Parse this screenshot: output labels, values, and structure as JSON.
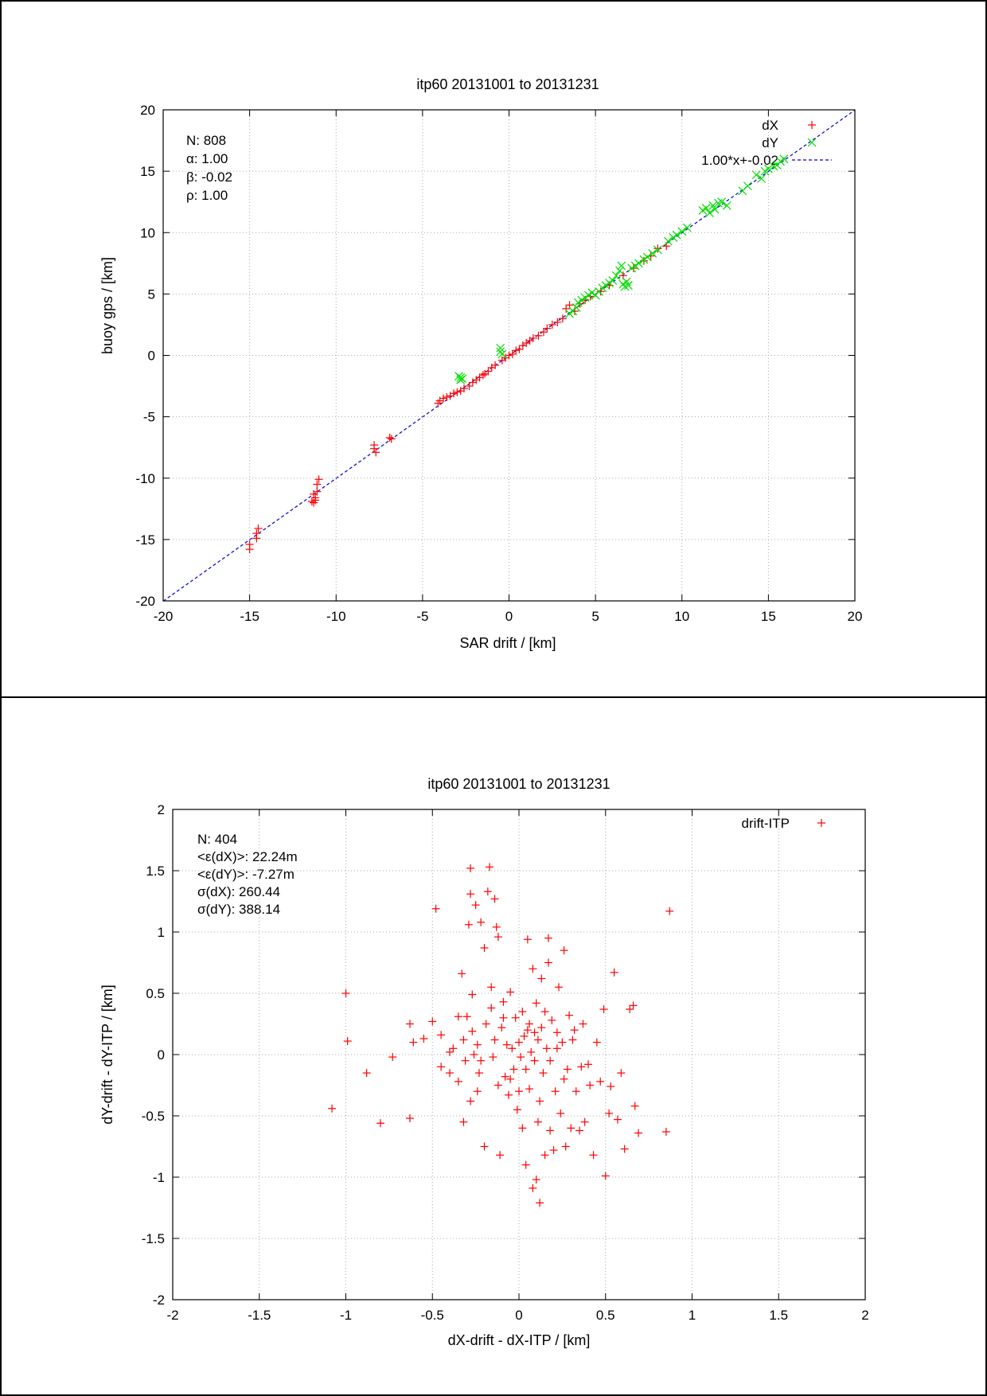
{
  "colors": {
    "dX": "#ff0000",
    "dY": "#00dd00",
    "fit": "#0000cc",
    "grid": "#aaaaaa",
    "axis": "#000000"
  },
  "chart_data": [
    {
      "type": "scatter",
      "title": "itp60 20131001 to 20131231",
      "xlabel": "SAR drift / [km]",
      "ylabel": "buoy gps / [km]",
      "xlim": [
        -20,
        20
      ],
      "ylim": [
        -20,
        20
      ],
      "xticks": [
        -20,
        -15,
        -10,
        -5,
        0,
        5,
        10,
        15,
        20
      ],
      "yticks": [
        -20,
        -15,
        -10,
        -5,
        0,
        5,
        10,
        15,
        20
      ],
      "grid": true,
      "legend_position": "top-right",
      "stats": [
        "N: 808",
        "α: 1.00",
        "β: -0.02",
        "ρ: 1.00"
      ],
      "series": [
        {
          "name": "dX",
          "marker": "plus",
          "color": "#ff0000",
          "points": [
            [
              -15.0,
              -15.4
            ],
            [
              -15.0,
              -15.8
            ],
            [
              -14.6,
              -14.5
            ],
            [
              -14.5,
              -14.1
            ],
            [
              -14.6,
              -14.9
            ],
            [
              -11.3,
              -11.3
            ],
            [
              -11.2,
              -11.6
            ],
            [
              -11.4,
              -11.9
            ],
            [
              -11.1,
              -11.1
            ],
            [
              -11.1,
              -10.5
            ],
            [
              -11.0,
              -10.1
            ],
            [
              -11.3,
              -12.0
            ],
            [
              -11.2,
              -11.8
            ],
            [
              -7.8,
              -7.3
            ],
            [
              -7.8,
              -7.6
            ],
            [
              -7.7,
              -7.9
            ],
            [
              -6.8,
              -6.8
            ],
            [
              -6.9,
              -6.7
            ],
            [
              -4.1,
              -3.9
            ],
            [
              -4.0,
              -3.7
            ],
            [
              -3.8,
              -3.5
            ],
            [
              -3.6,
              -3.4
            ],
            [
              -3.4,
              -3.3
            ],
            [
              -3.2,
              -3.1
            ],
            [
              -3.0,
              -3.0
            ],
            [
              -2.8,
              -2.9
            ],
            [
              -2.6,
              -2.7
            ],
            [
              -2.3,
              -2.5
            ],
            [
              -2.1,
              -2.2
            ],
            [
              -1.9,
              -2.0
            ],
            [
              -1.7,
              -1.8
            ],
            [
              -1.5,
              -1.6
            ],
            [
              -1.4,
              -1.5
            ],
            [
              -1.2,
              -1.3
            ],
            [
              -1.0,
              -1.0
            ],
            [
              -0.8,
              -0.8
            ],
            [
              -0.4,
              -0.4
            ],
            [
              -0.2,
              -0.2
            ],
            [
              0.0,
              0.0
            ],
            [
              0.2,
              0.1
            ],
            [
              0.4,
              0.4
            ],
            [
              0.6,
              0.5
            ],
            [
              0.8,
              0.8
            ],
            [
              1.0,
              1.0
            ],
            [
              1.2,
              1.2
            ],
            [
              1.4,
              1.4
            ],
            [
              1.7,
              1.6
            ],
            [
              2.0,
              1.9
            ],
            [
              2.2,
              2.2
            ],
            [
              2.5,
              2.5
            ],
            [
              2.8,
              2.7
            ],
            [
              3.1,
              3.0
            ],
            [
              3.3,
              3.8
            ],
            [
              3.5,
              4.1
            ],
            [
              3.8,
              3.6
            ],
            [
              4.1,
              4.2
            ],
            [
              4.4,
              4.5
            ],
            [
              4.7,
              4.8
            ],
            [
              5.3,
              5.2
            ],
            [
              5.8,
              5.7
            ],
            [
              6.6,
              6.5
            ],
            [
              7.2,
              7.1
            ],
            [
              7.8,
              7.7
            ],
            [
              8.2,
              8.1
            ],
            [
              8.6,
              8.7
            ],
            [
              9.1,
              8.9
            ]
          ]
        },
        {
          "name": "dY",
          "marker": "cross",
          "color": "#00dd00",
          "points": [
            [
              -2.9,
              -1.7
            ],
            [
              -2.8,
              -2.0
            ],
            [
              -2.7,
              -1.9
            ],
            [
              -2.8,
              -1.8
            ],
            [
              -0.5,
              0.3
            ],
            [
              -0.5,
              0.6
            ],
            [
              -0.4,
              0.1
            ],
            [
              3.5,
              3.4
            ],
            [
              3.7,
              3.6
            ],
            [
              3.9,
              3.9
            ],
            [
              4.0,
              4.3
            ],
            [
              4.2,
              4.5
            ],
            [
              4.4,
              4.7
            ],
            [
              4.6,
              4.9
            ],
            [
              4.8,
              5.1
            ],
            [
              5.0,
              4.9
            ],
            [
              5.2,
              5.2
            ],
            [
              5.4,
              5.5
            ],
            [
              5.6,
              5.7
            ],
            [
              5.8,
              5.9
            ],
            [
              6.0,
              6.1
            ],
            [
              6.2,
              6.5
            ],
            [
              6.4,
              6.9
            ],
            [
              6.5,
              7.3
            ],
            [
              6.6,
              5.8
            ],
            [
              6.7,
              5.6
            ],
            [
              6.8,
              6.0
            ],
            [
              6.9,
              5.7
            ],
            [
              7.1,
              7.1
            ],
            [
              7.3,
              7.3
            ],
            [
              7.5,
              7.5
            ],
            [
              7.8,
              7.8
            ],
            [
              8.0,
              8.0
            ],
            [
              8.3,
              8.3
            ],
            [
              8.6,
              8.6
            ],
            [
              9.2,
              9.3
            ],
            [
              9.5,
              9.6
            ],
            [
              9.7,
              9.8
            ],
            [
              10.0,
              10.1
            ],
            [
              10.3,
              10.4
            ],
            [
              11.2,
              11.8
            ],
            [
              11.4,
              12.0
            ],
            [
              11.6,
              11.6
            ],
            [
              11.8,
              12.2
            ],
            [
              11.9,
              11.9
            ],
            [
              12.1,
              12.4
            ],
            [
              12.3,
              12.5
            ],
            [
              12.6,
              12.2
            ],
            [
              13.5,
              13.4
            ],
            [
              13.8,
              13.8
            ],
            [
              14.3,
              14.7
            ],
            [
              14.6,
              14.4
            ],
            [
              14.8,
              15.0
            ],
            [
              15.0,
              15.2
            ],
            [
              15.3,
              15.4
            ],
            [
              15.5,
              15.5
            ],
            [
              15.7,
              15.8
            ],
            [
              15.9,
              16.0
            ]
          ]
        }
      ],
      "fit": {
        "name": "1.00*x+-0.02",
        "slope": 1.0,
        "intercept": -0.02,
        "style": "dashed",
        "color": "#0000cc"
      }
    },
    {
      "type": "scatter",
      "title": "itp60 20131001 to 20131231",
      "xlabel": "dX-drift - dX-ITP / [km]",
      "ylabel": "dY-drift - dY-ITP / [km]",
      "xlim": [
        -2,
        2
      ],
      "ylim": [
        -2,
        2
      ],
      "xticks": [
        -2,
        -1.5,
        -1,
        -0.5,
        0,
        0.5,
        1,
        1.5,
        2
      ],
      "yticks": [
        -2,
        -1.5,
        -1,
        -0.5,
        0,
        0.5,
        1,
        1.5,
        2
      ],
      "grid": true,
      "legend_position": "top-right",
      "stats": [
        "N: 404",
        "<ε(dX)>:  22.24m",
        "<ε(dY)>: -7.27m",
        "σ(dX):  260.44",
        "σ(dY):  388.14"
      ],
      "series": [
        {
          "name": "drift-ITP",
          "marker": "plus",
          "color": "#ff0000",
          "points": [
            [
              -1.08,
              -0.44
            ],
            [
              -1.0,
              0.5
            ],
            [
              -0.99,
              0.11
            ],
            [
              -0.88,
              -0.15
            ],
            [
              -0.8,
              -0.56
            ],
            [
              -0.73,
              -0.02
            ],
            [
              -0.63,
              0.25
            ],
            [
              -0.63,
              -0.52
            ],
            [
              -0.61,
              0.1
            ],
            [
              -0.55,
              0.13
            ],
            [
              -0.5,
              0.27
            ],
            [
              -0.48,
              1.19
            ],
            [
              -0.45,
              0.16
            ],
            [
              -0.45,
              -0.1
            ],
            [
              -0.4,
              -0.15
            ],
            [
              -0.38,
              0.05
            ],
            [
              -0.35,
              0.31
            ],
            [
              -0.33,
              0.66
            ],
            [
              -0.32,
              -0.55
            ],
            [
              -0.31,
              -0.05
            ],
            [
              -0.3,
              0.31
            ],
            [
              -0.29,
              1.06
            ],
            [
              -0.28,
              1.31
            ],
            [
              -0.28,
              1.52
            ],
            [
              -0.27,
              0.49
            ],
            [
              -0.27,
              0.19
            ],
            [
              -0.25,
              1.22
            ],
            [
              -0.24,
              -0.3
            ],
            [
              -0.24,
              0.08
            ],
            [
              -0.23,
              -0.15
            ],
            [
              -0.22,
              1.08
            ],
            [
              -0.2,
              0.87
            ],
            [
              -0.2,
              -0.75
            ],
            [
              -0.18,
              1.33
            ],
            [
              -0.17,
              1.53
            ],
            [
              -0.16,
              0.55
            ],
            [
              -0.16,
              0.38
            ],
            [
              -0.15,
              -0.02
            ],
            [
              -0.14,
              1.27
            ],
            [
              -0.13,
              1.04
            ],
            [
              -0.12,
              0.96
            ],
            [
              -0.11,
              -0.82
            ],
            [
              -0.1,
              0.22
            ],
            [
              -0.09,
              0.43
            ],
            [
              -0.08,
              -0.18
            ],
            [
              -0.07,
              0.08
            ],
            [
              -0.06,
              -0.33
            ],
            [
              -0.05,
              0.51
            ],
            [
              -0.04,
              0.05
            ],
            [
              -0.03,
              -0.12
            ],
            [
              -0.02,
              0.3
            ],
            [
              -0.01,
              -0.45
            ],
            [
              0.0,
              0.1
            ],
            [
              0.01,
              -0.02
            ],
            [
              0.02,
              -0.6
            ],
            [
              0.03,
              0.15
            ],
            [
              0.04,
              -0.9
            ],
            [
              0.05,
              0.94
            ],
            [
              0.05,
              0.2
            ],
            [
              0.06,
              -0.28
            ],
            [
              0.07,
              0.02
            ],
            [
              0.08,
              -1.09
            ],
            [
              0.08,
              0.7
            ],
            [
              0.09,
              -0.05
            ],
            [
              0.1,
              -1.02
            ],
            [
              0.1,
              0.42
            ],
            [
              0.11,
              0.12
            ],
            [
              0.12,
              -0.38
            ],
            [
              0.12,
              -1.21
            ],
            [
              0.13,
              0.62
            ],
            [
              0.14,
              -0.15
            ],
            [
              0.15,
              -0.82
            ],
            [
              0.16,
              0.05
            ],
            [
              0.17,
              0.95
            ],
            [
              0.17,
              0.75
            ],
            [
              0.18,
              -0.62
            ],
            [
              0.19,
              0.28
            ],
            [
              0.2,
              -0.78
            ],
            [
              0.21,
              -0.3
            ],
            [
              0.22,
              0.18
            ],
            [
              0.23,
              0.55
            ],
            [
              0.24,
              -0.48
            ],
            [
              0.25,
              0.1
            ],
            [
              0.26,
              0.85
            ],
            [
              0.27,
              -0.75
            ],
            [
              0.28,
              -0.12
            ],
            [
              0.29,
              0.32
            ],
            [
              0.3,
              -0.6
            ],
            [
              0.31,
              0.12
            ],
            [
              0.33,
              -0.3
            ],
            [
              0.35,
              -0.62
            ],
            [
              0.37,
              0.25
            ],
            [
              0.38,
              -0.55
            ],
            [
              0.4,
              -0.08
            ],
            [
              0.41,
              -0.25
            ],
            [
              0.43,
              -0.82
            ],
            [
              0.45,
              0.1
            ],
            [
              0.47,
              -0.22
            ],
            [
              0.49,
              0.37
            ],
            [
              0.5,
              -0.99
            ],
            [
              0.52,
              -0.48
            ],
            [
              0.53,
              -0.26
            ],
            [
              0.55,
              0.67
            ],
            [
              0.57,
              -0.53
            ],
            [
              0.59,
              -0.15
            ],
            [
              0.61,
              -0.77
            ],
            [
              0.64,
              0.37
            ],
            [
              0.66,
              0.4
            ],
            [
              0.67,
              -0.42
            ],
            [
              0.69,
              -0.64
            ],
            [
              0.85,
              -0.63
            ],
            [
              0.87,
              1.17
            ],
            [
              -0.4,
              0.02
            ],
            [
              -0.35,
              -0.22
            ],
            [
              -0.32,
              0.12
            ],
            [
              -0.28,
              -0.38
            ],
            [
              -0.22,
              -0.05
            ],
            [
              -0.19,
              0.25
            ],
            [
              -0.12,
              -0.25
            ],
            [
              -0.09,
              0.3
            ],
            [
              0.02,
              0.35
            ],
            [
              0.06,
              0.25
            ],
            [
              0.13,
              0.22
            ],
            [
              0.18,
              -0.05
            ],
            [
              0.22,
              0.05
            ],
            [
              0.26,
              -0.2
            ],
            [
              0.32,
              0.2
            ],
            [
              0.36,
              -0.1
            ],
            [
              -0.05,
              -0.2
            ],
            [
              0.0,
              -0.3
            ],
            [
              0.04,
              -0.12
            ],
            [
              0.09,
              0.18
            ],
            [
              -0.14,
              0.12
            ],
            [
              -0.26,
              0.0
            ],
            [
              0.15,
              0.35
            ],
            [
              0.11,
              -0.55
            ]
          ]
        }
      ]
    }
  ]
}
